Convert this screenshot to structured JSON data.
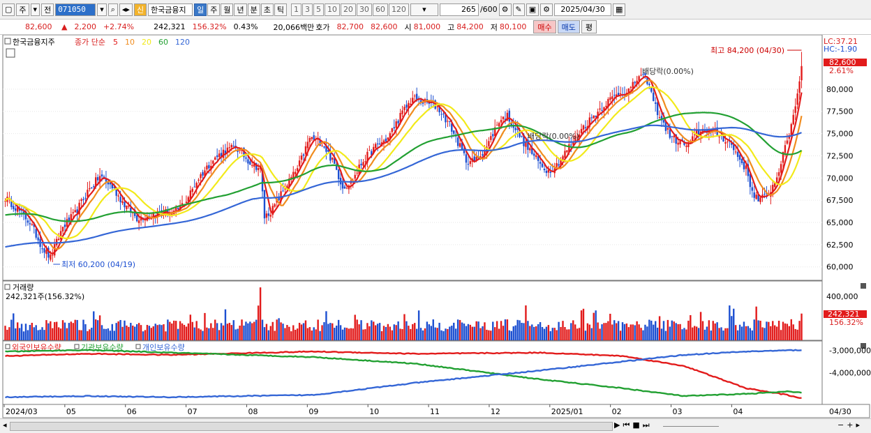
{
  "toolbar": {
    "market": "주",
    "prefix": "전",
    "code": "071050",
    "search_icon": "search-icon",
    "sin_badge": "신",
    "stock_name": "한국금융지",
    "periods": [
      "일",
      "주",
      "월",
      "년",
      "분",
      "초",
      "틱"
    ],
    "active_period": "일",
    "intervals": [
      "1",
      "3",
      "5",
      "10",
      "20",
      "30",
      "60",
      "120"
    ],
    "count": "265",
    "total": "/600",
    "date": "2025/04/30"
  },
  "quote": {
    "price": "82,600",
    "change_arrow": "▲",
    "change": "2,200",
    "change_pct": "+2.74%",
    "volume": "242,321",
    "vol_ratio": "156.32%",
    "turnover": "0.43%",
    "amount": "20,066백만",
    "ask_label": "호가",
    "ask": "82,700",
    "bid": "82,600",
    "open_label": "시",
    "open": "81,000",
    "high_label": "고",
    "high": "84,200",
    "low_label": "저",
    "low": "80,100",
    "buy": "매수",
    "sell": "매도",
    "eval": "평"
  },
  "chart_data": {
    "type": "line",
    "price_panel": {
      "stock": "한국금융지주",
      "legend": {
        "label": "종가 단순",
        "periods": [
          "5",
          "10",
          "20",
          "60",
          "120"
        ]
      },
      "lc": "LC:37.21",
      "hc": "HC:-1.90",
      "current_price_tag": "82,600",
      "current_pct_tag": "2.61%",
      "high_annotation": "최고 84,200 (04/30)",
      "low_annotation": "최저 60,200 (04/19)",
      "dividend_labels": [
        "배당락(0.00%)",
        "배당락(0.00%)"
      ],
      "yticks": [
        "80,000",
        "77,500",
        "75,000",
        "72,500",
        "70,000",
        "67,500",
        "65,000",
        "62,500",
        "60,000"
      ],
      "ylim": [
        58800,
        85800
      ],
      "x_labels": [
        "2024/03",
        "05",
        "06",
        "07",
        "08",
        "09",
        "10",
        "11",
        "12",
        "2025/01",
        "02",
        "03",
        "04"
      ],
      "last_x_label": "04/30",
      "close_anchors": [
        [
          0,
          67800
        ],
        [
          6,
          66500
        ],
        [
          12,
          65000
        ],
        [
          18,
          62200
        ],
        [
          22,
          61000
        ],
        [
          28,
          64500
        ],
        [
          34,
          66000
        ],
        [
          40,
          68500
        ],
        [
          46,
          70200
        ],
        [
          52,
          69000
        ],
        [
          58,
          67000
        ],
        [
          64,
          65500
        ],
        [
          70,
          65800
        ],
        [
          76,
          66200
        ],
        [
          82,
          66000
        ],
        [
          88,
          67500
        ],
        [
          94,
          70000
        ],
        [
          100,
          71800
        ],
        [
          106,
          73000
        ],
        [
          112,
          73500
        ],
        [
          118,
          72000
        ],
        [
          124,
          71000
        ],
        [
          126,
          65600
        ],
        [
          130,
          66500
        ],
        [
          136,
          69000
        ],
        [
          142,
          71000
        ],
        [
          148,
          74500
        ],
        [
          154,
          74000
        ],
        [
          160,
          71500
        ],
        [
          164,
          69000
        ],
        [
          168,
          69500
        ],
        [
          174,
          72000
        ],
        [
          180,
          73500
        ],
        [
          186,
          74500
        ],
        [
          192,
          77000
        ],
        [
          198,
          79000
        ],
        [
          204,
          78500
        ],
        [
          210,
          78000
        ],
        [
          216,
          76000
        ],
        [
          220,
          74000
        ],
        [
          224,
          72000
        ],
        [
          228,
          71800
        ],
        [
          234,
          73500
        ],
        [
          240,
          76500
        ],
        [
          244,
          77000
        ],
        [
          248,
          75500
        ],
        [
          252,
          74000
        ],
        [
          256,
          72800
        ],
        [
          260,
          71500
        ],
        [
          264,
          70800
        ],
        [
          268,
          71500
        ],
        [
          274,
          73500
        ],
        [
          280,
          75500
        ],
        [
          286,
          77000
        ],
        [
          292,
          78500
        ],
        [
          298,
          79500
        ],
        [
          304,
          80000
        ],
        [
          308,
          81500
        ],
        [
          312,
          81000
        ],
        [
          316,
          78000
        ],
        [
          320,
          76000
        ],
        [
          324,
          74500
        ],
        [
          328,
          74000
        ],
        [
          332,
          73600
        ],
        [
          336,
          75000
        ],
        [
          340,
          75500
        ],
        [
          346,
          75000
        ],
        [
          352,
          74000
        ],
        [
          356,
          72500
        ],
        [
          360,
          71000
        ],
        [
          363,
          68500
        ],
        [
          366,
          67500
        ],
        [
          370,
          68000
        ],
        [
          374,
          69500
        ],
        [
          378,
          72500
        ],
        [
          382,
          76000
        ],
        [
          385,
          79500
        ],
        [
          387,
          82600
        ]
      ],
      "ma_periods": [
        5,
        10,
        20,
        60,
        120
      ],
      "ma_colors": [
        "#e21b1b",
        "#f08c1e",
        "#f2ea1a",
        "#22a032",
        "#3466d6"
      ]
    },
    "volume_panel": {
      "title": "거래량",
      "legend": "242,321주(156.32%)",
      "ytick": "400,000",
      "tag_value": "242,321",
      "tag_pct": "156.32%",
      "ylim": [
        0,
        500000
      ],
      "last_volume": 242321
    },
    "holdings_panel": {
      "series_names": [
        "외국인보유수량",
        "기관보유수량",
        "개인보유수량"
      ],
      "series_colors": [
        "#e21b1b",
        "#22a032",
        "#3466d6"
      ],
      "yticks": [
        "-3,000,000",
        "-4,000,000"
      ],
      "ylim": [
        -5300000,
        -2700000
      ]
    }
  },
  "scrollbar": {
    "controls": [
      "▶",
      "⏮",
      "■",
      "⏭"
    ],
    "zoom": [
      "−",
      "+"
    ]
  }
}
